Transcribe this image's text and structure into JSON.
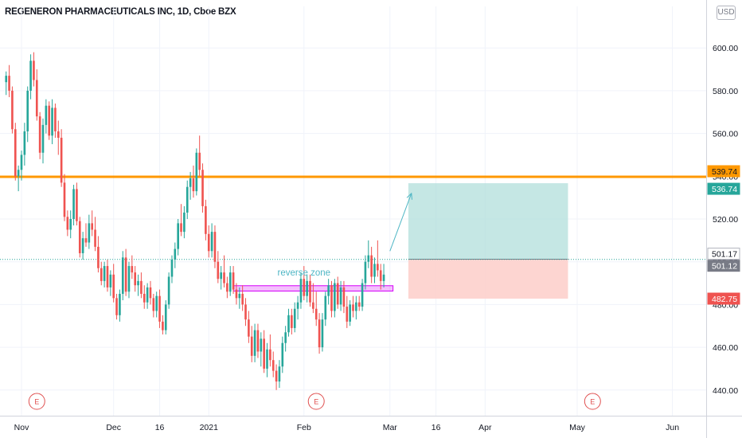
{
  "header": {
    "title": "REGENERON PHARMACEUTICALS INC, 1D, Cboe BZX",
    "currency": "USD"
  },
  "colors": {
    "up": "#26a69a",
    "down": "#ef5350",
    "resistance": "#ff9800",
    "profit_zone": "#b2dfdb",
    "loss_zone": "#fdd0cc",
    "reverse_zone": "#d500f9",
    "annotation": "#4fb6c5",
    "last_price": "#26a69a",
    "events": "#e05252"
  },
  "chart_data": {
    "type": "candlestick",
    "ylim": [
      428,
      612
    ],
    "y_ticks": [
      440,
      460,
      480,
      500,
      520,
      540,
      560,
      580,
      600
    ],
    "y_tick_labels": [
      "440.00",
      "460.00",
      "480.00",
      "500.00",
      "520.00",
      "540.00",
      "560.00",
      "580.00",
      "600.00"
    ],
    "x_ticks": [
      {
        "label": "Nov",
        "day": 0
      },
      {
        "label": "Dec",
        "day": 30
      },
      {
        "label": "16",
        "day": 45
      },
      {
        "label": "2021",
        "day": 61
      },
      {
        "label": "Feb",
        "day": 92
      },
      {
        "label": "Mar",
        "day": 120
      },
      {
        "label": "16",
        "day": 135
      },
      {
        "label": "Apr",
        "day": 151
      },
      {
        "label": "May",
        "day": 181
      },
      {
        "label": "Jun",
        "day": 212
      }
    ],
    "x_range_days": [
      -7,
      223
    ],
    "events": [
      {
        "label": "E",
        "day": 5
      },
      {
        "label": "E",
        "day": 96
      },
      {
        "label": "E",
        "day": 186
      }
    ],
    "candles": [
      [
        -5,
        584,
        589,
        578,
        587
      ],
      [
        -4,
        587,
        592,
        577,
        580
      ],
      [
        -3,
        580,
        582,
        560,
        562
      ],
      [
        -2,
        562,
        565,
        538,
        540
      ],
      [
        -1,
        540,
        545,
        533,
        543
      ],
      [
        0,
        543,
        552,
        538,
        550
      ],
      [
        1,
        550,
        565,
        545,
        561
      ],
      [
        2,
        561,
        582,
        556,
        580
      ],
      [
        3,
        580,
        597,
        576,
        594
      ],
      [
        4,
        594,
        598,
        582,
        585
      ],
      [
        5,
        585,
        590,
        566,
        568
      ],
      [
        6,
        568,
        570,
        548,
        551
      ],
      [
        7,
        551,
        567,
        546,
        564
      ],
      [
        8,
        564,
        576,
        560,
        573
      ],
      [
        9,
        573,
        575,
        557,
        559
      ],
      [
        10,
        559,
        576,
        555,
        572
      ],
      [
        11,
        572,
        574,
        558,
        561
      ],
      [
        12,
        561,
        566,
        550,
        558
      ],
      [
        13,
        558,
        562,
        535,
        537
      ],
      [
        14,
        537,
        541,
        519,
        521
      ],
      [
        15,
        521,
        524,
        512,
        515
      ],
      [
        16,
        515,
        524,
        511,
        520
      ],
      [
        17,
        520,
        536,
        517,
        534
      ],
      [
        18,
        534,
        537,
        517,
        519
      ],
      [
        19,
        519,
        521,
        502,
        504
      ],
      [
        20,
        504,
        514,
        501,
        511
      ],
      [
        21,
        511,
        518,
        507,
        509
      ],
      [
        22,
        509,
        522,
        506,
        518
      ],
      [
        23,
        518,
        524,
        512,
        515
      ],
      [
        24,
        515,
        521,
        505,
        507
      ],
      [
        25,
        507,
        512,
        495,
        497
      ],
      [
        26,
        497,
        500,
        489,
        491
      ],
      [
        27,
        491,
        500,
        488,
        498
      ],
      [
        28,
        498,
        501,
        486,
        488
      ],
      [
        29,
        488,
        496,
        484,
        494
      ],
      [
        30,
        494,
        499,
        481,
        483
      ],
      [
        31,
        483,
        485,
        473,
        475
      ],
      [
        32,
        475,
        487,
        472,
        485
      ],
      [
        33,
        485,
        505,
        482,
        502
      ],
      [
        34,
        502,
        506,
        484,
        486
      ],
      [
        35,
        486,
        500,
        483,
        498
      ],
      [
        36,
        498,
        503,
        492,
        495
      ],
      [
        37,
        495,
        498,
        486,
        489
      ],
      [
        38,
        489,
        494,
        484,
        491
      ],
      [
        39,
        491,
        495,
        483,
        485
      ],
      [
        40,
        485,
        489,
        478,
        481
      ],
      [
        41,
        481,
        490,
        478,
        488
      ],
      [
        42,
        488,
        491,
        480,
        483
      ],
      [
        43,
        483,
        485,
        474,
        477
      ],
      [
        44,
        477,
        486,
        474,
        484
      ],
      [
        45,
        484,
        487,
        469,
        472
      ],
      [
        46,
        472,
        475,
        466,
        468
      ],
      [
        47,
        468,
        482,
        466,
        480
      ],
      [
        48,
        480,
        495,
        478,
        493
      ],
      [
        49,
        493,
        503,
        490,
        501
      ],
      [
        50,
        501,
        509,
        497,
        506
      ],
      [
        51,
        506,
        520,
        503,
        518
      ],
      [
        52,
        518,
        527,
        512,
        514
      ],
      [
        53,
        514,
        526,
        511,
        523
      ],
      [
        54,
        523,
        538,
        520,
        535
      ],
      [
        55,
        535,
        542,
        529,
        539
      ],
      [
        56,
        539,
        545,
        530,
        533
      ],
      [
        57,
        533,
        553,
        531,
        551
      ],
      [
        58,
        551,
        559,
        540,
        543
      ],
      [
        59,
        543,
        546,
        523,
        526
      ],
      [
        60,
        526,
        529,
        510,
        513
      ],
      [
        61,
        513,
        517,
        502,
        505
      ],
      [
        62,
        505,
        518,
        502,
        514
      ],
      [
        63,
        514,
        517,
        497,
        500
      ],
      [
        64,
        500,
        505,
        490,
        492
      ],
      [
        65,
        492,
        498,
        487,
        495
      ],
      [
        66,
        495,
        503,
        488,
        490
      ],
      [
        67,
        490,
        493,
        483,
        486
      ],
      [
        68,
        486,
        498,
        484,
        495
      ],
      [
        69,
        495,
        498,
        485,
        487
      ],
      [
        70,
        487,
        490,
        480,
        483
      ],
      [
        71,
        483,
        488,
        478,
        485
      ],
      [
        72,
        485,
        489,
        477,
        480
      ],
      [
        73,
        480,
        483,
        470,
        473
      ],
      [
        74,
        473,
        477,
        462,
        465
      ],
      [
        75,
        465,
        470,
        453,
        456
      ],
      [
        76,
        456,
        471,
        453,
        468
      ],
      [
        77,
        468,
        471,
        455,
        458
      ],
      [
        78,
        458,
        467,
        451,
        464
      ],
      [
        79,
        464,
        468,
        448,
        450
      ],
      [
        80,
        450,
        462,
        446,
        459
      ],
      [
        81,
        459,
        466,
        451,
        454
      ],
      [
        82,
        454,
        458,
        446,
        449
      ],
      [
        83,
        449,
        452,
        440,
        444
      ],
      [
        84,
        444,
        454,
        441,
        451
      ],
      [
        85,
        451,
        465,
        448,
        462
      ],
      [
        86,
        462,
        470,
        458,
        467
      ],
      [
        87,
        467,
        478,
        465,
        475
      ],
      [
        88,
        475,
        478,
        466,
        469
      ],
      [
        89,
        469,
        481,
        467,
        478
      ],
      [
        90,
        478,
        484,
        473,
        481
      ],
      [
        91,
        481,
        495,
        478,
        492
      ],
      [
        92,
        492,
        498,
        482,
        484
      ],
      [
        93,
        484,
        494,
        481,
        491
      ],
      [
        94,
        491,
        494,
        479,
        481
      ],
      [
        95,
        481,
        490,
        476,
        478
      ],
      [
        96,
        478,
        486,
        470,
        473
      ],
      [
        97,
        473,
        476,
        457,
        460
      ],
      [
        98,
        460,
        476,
        458,
        473
      ],
      [
        99,
        473,
        486,
        470,
        484
      ],
      [
        100,
        484,
        492,
        480,
        489
      ],
      [
        101,
        489,
        491,
        474,
        477
      ],
      [
        102,
        477,
        492,
        474,
        490
      ],
      [
        103,
        490,
        493,
        478,
        480
      ],
      [
        104,
        480,
        491,
        477,
        488
      ],
      [
        105,
        488,
        491,
        476,
        479
      ],
      [
        106,
        479,
        484,
        469,
        472
      ],
      [
        107,
        472,
        482,
        470,
        480
      ],
      [
        108,
        480,
        484,
        474,
        477
      ],
      [
        109,
        477,
        484,
        473,
        481
      ],
      [
        110,
        481,
        484,
        477,
        479
      ],
      [
        111,
        479,
        492,
        477,
        490
      ],
      [
        112,
        490,
        503,
        487,
        500
      ],
      [
        113,
        500,
        510,
        497,
        503
      ],
      [
        114,
        503,
        507,
        490,
        493
      ],
      [
        115,
        493,
        502,
        490,
        499
      ],
      [
        116,
        499,
        510,
        493,
        496
      ],
      [
        117,
        496,
        499,
        487,
        491
      ],
      [
        118,
        491,
        499,
        488,
        494
      ]
    ],
    "price_levels": [
      {
        "value": 539.74,
        "label": "539.74",
        "style": "resistance"
      },
      {
        "value": 536.74,
        "label": "536.74",
        "style": "target"
      },
      {
        "value": 501.17,
        "label": "501.17",
        "style": "entry"
      },
      {
        "value": 501.12,
        "label": "501.12",
        "style": "last"
      },
      {
        "value": 482.75,
        "label": "482.75",
        "style": "stop"
      }
    ],
    "position_box": {
      "x0_day": 126,
      "x1_day": 178,
      "entry": 501.17,
      "target": 536.74,
      "stop": 482.75
    },
    "reverse_zone": {
      "x0_day": 69,
      "x1_day": 121,
      "y0": 486.3,
      "y1": 488.8
    },
    "annotations": [
      {
        "text": "reverse zone",
        "x_day": 92,
        "y": 493.5
      }
    ],
    "arrow": {
      "from_day": 120,
      "from_y": 505,
      "to_day": 127,
      "to_y": 532
    }
  }
}
